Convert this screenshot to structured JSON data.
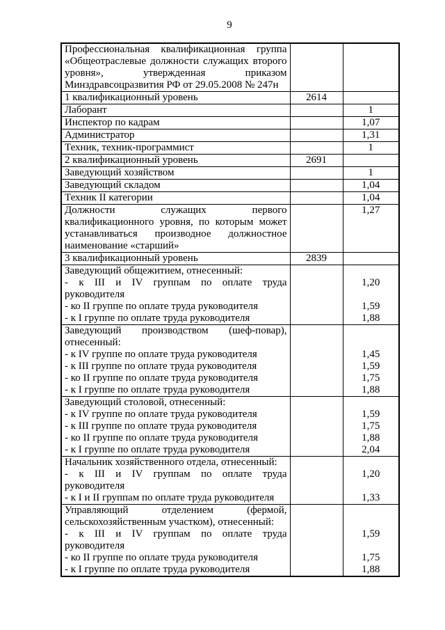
{
  "page": {
    "number": "9"
  },
  "table": {
    "rows": [
      {
        "segments": [
          {
            "lines": [
              {
                "t": "Профессиональная квалификационная группа",
                "j": 1
              },
              {
                "t": "«Общеотраслевые должности служащих второго",
                "j": 1
              },
              {
                "t": "уровня», утвержденная приказом",
                "j": 1
              },
              {
                "t": "Минздравсоцразвития РФ от 29.05.2008 № 247н",
                "j": 0
              }
            ],
            "mid": "",
            "val": ""
          }
        ]
      },
      {
        "segments": [
          {
            "lines": [
              {
                "t": "1 квалификационный уровень",
                "j": 0
              }
            ],
            "mid": "2614",
            "val": ""
          }
        ]
      },
      {
        "segments": [
          {
            "lines": [
              {
                "t": "Лаборант",
                "j": 0
              }
            ],
            "mid": "",
            "val": "1"
          }
        ]
      },
      {
        "segments": [
          {
            "lines": [
              {
                "t": "Инспектор по кадрам",
                "j": 0
              }
            ],
            "mid": "",
            "val": "1,07"
          }
        ]
      },
      {
        "segments": [
          {
            "lines": [
              {
                "t": "Администратор",
                "j": 0
              }
            ],
            "mid": "",
            "val": "1,31"
          }
        ]
      },
      {
        "segments": [
          {
            "lines": [
              {
                "t": "Техник, техник-программист",
                "j": 0
              }
            ],
            "mid": "",
            "val": "1"
          }
        ]
      },
      {
        "segments": [
          {
            "lines": [
              {
                "t": "2 квалификационный уровень",
                "j": 0
              }
            ],
            "mid": "2691",
            "val": ""
          }
        ]
      },
      {
        "segments": [
          {
            "lines": [
              {
                "t": "Заведующий хозяйством",
                "j": 0
              }
            ],
            "mid": "",
            "val": "1"
          }
        ]
      },
      {
        "segments": [
          {
            "lines": [
              {
                "t": "Заведующий складом",
                "j": 0
              }
            ],
            "mid": "",
            "val": "1,04"
          }
        ]
      },
      {
        "segments": [
          {
            "lines": [
              {
                "t": "Техник II категории",
                "j": 0
              }
            ],
            "mid": "",
            "val": "1,04"
          }
        ]
      },
      {
        "segments": [
          {
            "lines": [
              {
                "t": "Должности служащих первого",
                "j": 1
              },
              {
                "t": "квалификационного уровня, по которым может",
                "j": 1
              },
              {
                "t": "устанавливаться производное должностное",
                "j": 1
              },
              {
                "t": "наименование «старший»",
                "j": 0
              }
            ],
            "mid": "",
            "val": "1,27"
          }
        ]
      },
      {
        "segments": [
          {
            "lines": [
              {
                "t": "3 квалификационный уровень",
                "j": 0
              }
            ],
            "mid": "2839",
            "val": ""
          }
        ]
      },
      {
        "segments": [
          {
            "lines": [
              {
                "t": "Заведующий общежитием, отнесенный:",
                "j": 0
              }
            ],
            "mid": "",
            "val": ""
          },
          {
            "lines": [
              {
                "t": "- к III и IV группам по оплате труда",
                "j": 1
              },
              {
                "t": "руководителя",
                "j": 0
              }
            ],
            "mid": "",
            "val": "1,20"
          },
          {
            "lines": [
              {
                "t": "- ко II группе по оплате труда руководителя",
                "j": 0
              }
            ],
            "mid": "",
            "val": "1,59"
          },
          {
            "lines": [
              {
                "t": "- к I группе по оплате труда руководителя",
                "j": 0
              }
            ],
            "mid": "",
            "val": "1,88"
          }
        ]
      },
      {
        "segments": [
          {
            "lines": [
              {
                "t": "Заведующий производством (шеф-повар),",
                "j": 1
              },
              {
                "t": "отнесенный:",
                "j": 0
              }
            ],
            "mid": "",
            "val": ""
          },
          {
            "lines": [
              {
                "t": "- к IV группе по оплате труда руководителя",
                "j": 0
              }
            ],
            "mid": "",
            "val": "1,45"
          },
          {
            "lines": [
              {
                "t": "- к III группе по оплате труда руководителя",
                "j": 0
              }
            ],
            "mid": "",
            "val": "1,59"
          },
          {
            "lines": [
              {
                "t": "- ко II группе по оплате труда руководителя",
                "j": 0
              }
            ],
            "mid": "",
            "val": "1,75"
          },
          {
            "lines": [
              {
                "t": "- к I группе по оплате труда руководителя",
                "j": 0
              }
            ],
            "mid": "",
            "val": "1,88"
          }
        ]
      },
      {
        "segments": [
          {
            "lines": [
              {
                "t": "Заведующий столовой, отнесенный:",
                "j": 0
              }
            ],
            "mid": "",
            "val": ""
          },
          {
            "lines": [
              {
                "t": "- к IV группе по оплате труда руководителя",
                "j": 0
              }
            ],
            "mid": "",
            "val": "1,59"
          },
          {
            "lines": [
              {
                "t": "- к III группе по оплате труда руководителя",
                "j": 0
              }
            ],
            "mid": "",
            "val": "1,75"
          },
          {
            "lines": [
              {
                "t": "- ко II группе по оплате труда руководителя",
                "j": 0
              }
            ],
            "mid": "",
            "val": "1,88"
          },
          {
            "lines": [
              {
                "t": "- к I группе по оплате труда руководителя",
                "j": 0
              }
            ],
            "mid": "",
            "val": "2,04"
          }
        ]
      },
      {
        "segments": [
          {
            "lines": [
              {
                "t": "Начальник хозяйственного отдела, отнесенный:",
                "j": 0
              }
            ],
            "mid": "",
            "val": ""
          },
          {
            "lines": [
              {
                "t": "- к III и IV группам по оплате труда",
                "j": 1
              },
              {
                "t": "руководителя",
                "j": 0
              }
            ],
            "mid": "",
            "val": "1,20"
          },
          {
            "lines": [
              {
                "t": "- к I и II группам по оплате труда руководителя",
                "j": 0
              }
            ],
            "mid": "",
            "val": "1,33"
          }
        ]
      },
      {
        "segments": [
          {
            "lines": [
              {
                "t": "Управляющий отделением (фермой,",
                "j": 1
              },
              {
                "t": "сельскохозяйственным участком), отнесенный:",
                "j": 0
              }
            ],
            "mid": "",
            "val": ""
          },
          {
            "lines": [
              {
                "t": "- к III и IV группам по оплате труда",
                "j": 1
              },
              {
                "t": "руководителя",
                "j": 0
              }
            ],
            "mid": "",
            "val": "1,59"
          },
          {
            "lines": [
              {
                "t": "- ко II группе по оплате труда руководителя",
                "j": 0
              }
            ],
            "mid": "",
            "val": "1,75"
          },
          {
            "lines": [
              {
                "t": "- к I группе по оплате труда руководителя",
                "j": 0
              }
            ],
            "mid": "",
            "val": "1,88"
          }
        ]
      }
    ]
  }
}
